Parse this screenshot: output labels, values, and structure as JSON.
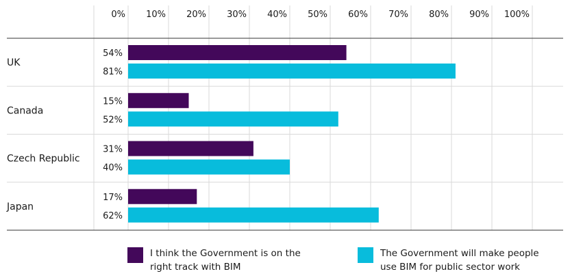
{
  "chart_data": {
    "type": "bar",
    "orientation": "horizontal",
    "categories": [
      "UK",
      "Canada",
      "Czech Republic",
      "Japan"
    ],
    "series": [
      {
        "name_lines": [
          "I think the Government is on the",
          "right track with BIM"
        ],
        "values": [
          54,
          15,
          31,
          17
        ],
        "value_labels": [
          "54%",
          "15%",
          "31%",
          "17%"
        ],
        "color": "#43085a"
      },
      {
        "name_lines": [
          "The Government will make people",
          "use BIM for public sector work"
        ],
        "values": [
          81,
          52,
          40,
          62
        ],
        "value_labels": [
          "81%",
          "52%",
          "40%",
          "62%"
        ],
        "color": "#08bcdc"
      }
    ],
    "xlim": [
      0,
      100
    ],
    "x_ticks": [
      0,
      10,
      20,
      30,
      40,
      50,
      60,
      70,
      80,
      90,
      100
    ],
    "x_tick_labels": [
      "0%",
      "10%",
      "20%",
      "30%",
      "40%",
      "50%",
      "60%",
      "70%",
      "80%",
      "90%",
      "100%"
    ],
    "tick_position": "top",
    "grid": "vertical",
    "legend_position": "bottom",
    "colors": {
      "gridline": "#d9d9d9",
      "axis_line": "#333333"
    }
  }
}
